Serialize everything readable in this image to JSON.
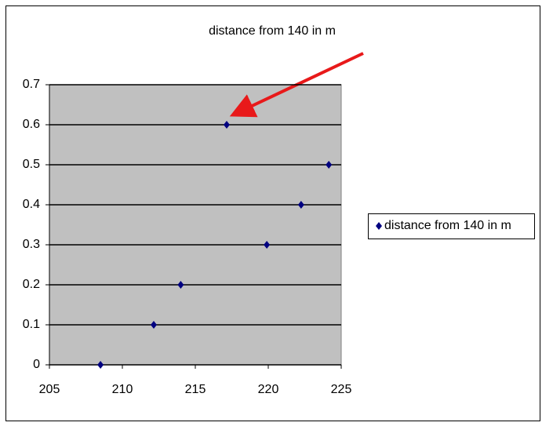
{
  "chart_data": {
    "type": "scatter",
    "title": "distance from 140 in m",
    "series": [
      {
        "name": "distance from 140 in m",
        "color": "#000080",
        "x": [
          208.5,
          212.15,
          214.0,
          217.15,
          219.9,
          222.25,
          224.15
        ],
        "values": [
          0,
          0.1,
          0.2,
          0.6,
          0.3,
          0.4,
          0.5
        ]
      }
    ],
    "xlim": [
      205,
      225
    ],
    "xticks": [
      205,
      210,
      215,
      220,
      225
    ],
    "ylim": [
      0,
      0.7
    ],
    "yticks": [
      0,
      0.1,
      0.2,
      0.3,
      0.4,
      0.5,
      0.6,
      0.7
    ],
    "grid": true,
    "legend": "right"
  }
}
